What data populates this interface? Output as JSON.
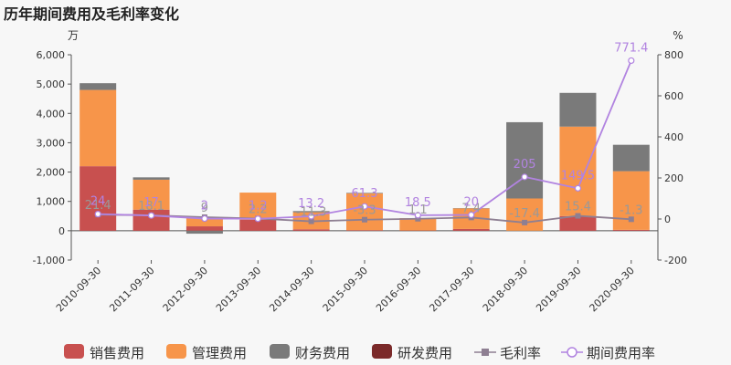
{
  "chart_data": {
    "type": "bar",
    "title": "历年期间费用及毛利率变化",
    "ylabel_left": "万",
    "ylabel_right": "%",
    "categories": [
      "2010-09-30",
      "2011-09-30",
      "2012-09-30",
      "2013-09-30",
      "2014-09-30",
      "2015-09-30",
      "2016-09-30",
      "2017-09-30",
      "2018-09-30",
      "2019-09-30",
      "2020-09-30"
    ],
    "ylim_left": [
      -1000,
      6000
    ],
    "yticks_left": [
      "-1,000",
      "0",
      "1,000",
      "2,000",
      "3,000",
      "4,000",
      "5,000",
      "6,000"
    ],
    "ylim_right": [
      -200,
      800
    ],
    "yticks_right": [
      "-200",
      "0",
      "200",
      "400",
      "600",
      "800"
    ],
    "stacked": true,
    "series": [
      {
        "name": "销售费用",
        "kind": "bar",
        "color": "#c8504f",
        "values": [
          2200,
          720,
          150,
          380,
          50,
          20,
          10,
          60,
          0,
          500,
          30
        ]
      },
      {
        "name": "管理费用",
        "kind": "bar",
        "color": "#f7954a",
        "values": [
          2600,
          1020,
          300,
          920,
          580,
          1250,
          420,
          700,
          1100,
          3050,
          2000
        ]
      },
      {
        "name": "财务费用",
        "kind": "bar",
        "color": "#7a7a7a",
        "values": [
          230,
          80,
          -100,
          0,
          40,
          20,
          0,
          10,
          2600,
          1150,
          900
        ]
      },
      {
        "name": "研发费用",
        "kind": "bar",
        "color": "#7b2a2a",
        "values": [
          0,
          0,
          0,
          0,
          0,
          0,
          0,
          0,
          0,
          0,
          0
        ]
      },
      {
        "name": "毛利率",
        "kind": "line",
        "axis": "right",
        "color": "#8e7f92",
        "values": [
          21.4,
          18.1,
          9,
          2.2,
          -11.3,
          -3.3,
          1.1,
          7.4,
          -17.4,
          15.4,
          -1.3
        ],
        "labels": [
          "21.4",
          "18.1",
          "9",
          "2.2",
          "-11.3",
          "-3.3",
          "1.1",
          "7.4",
          "-17.4",
          "15.4",
          "-1.3"
        ]
      },
      {
        "name": "期间费用率",
        "kind": "line",
        "axis": "right",
        "color": "#b183e0",
        "values": [
          24,
          17,
          2,
          1.2,
          13.2,
          61.3,
          18.5,
          20,
          205,
          149.5,
          771.4
        ],
        "labels": [
          "24",
          "17",
          "2",
          "1.2",
          "13.2",
          "61.3",
          "18.5",
          "20",
          "205",
          "149.5",
          "771.4"
        ]
      }
    ],
    "legend_position": "bottom",
    "grid": false
  }
}
